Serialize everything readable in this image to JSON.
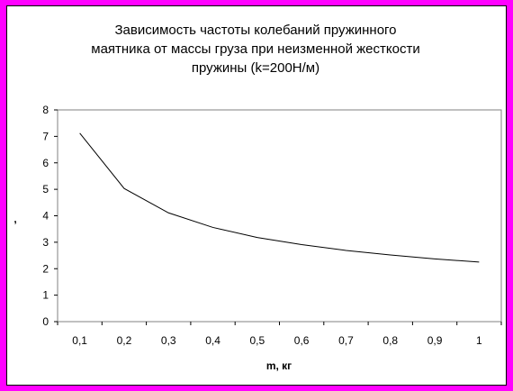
{
  "chart_data": {
    "type": "line",
    "title": [
      "Зависимость частоты колебаний пружинного",
      "маятника от массы груза при неизменной жесткости",
      "пружины (k=200Н/м)"
    ],
    "xlabel": "m, кг",
    "ylabel": ",",
    "categories": [
      "0,1",
      "0,2",
      "0,3",
      "0,4",
      "0,5",
      "0,6",
      "0,7",
      "0,8",
      "0,9",
      "1"
    ],
    "series": [
      {
        "values": [
          7.12,
          5.03,
          4.11,
          3.56,
          3.18,
          2.91,
          2.69,
          2.52,
          2.37,
          2.25
        ]
      }
    ],
    "ylim": [
      0,
      8
    ],
    "yticks": [
      "0",
      "1",
      "2",
      "3",
      "4",
      "5",
      "6",
      "7",
      "8"
    ],
    "grid": false,
    "legend": "none",
    "line_color": "#000000",
    "frame_color": "#FF00FF"
  }
}
